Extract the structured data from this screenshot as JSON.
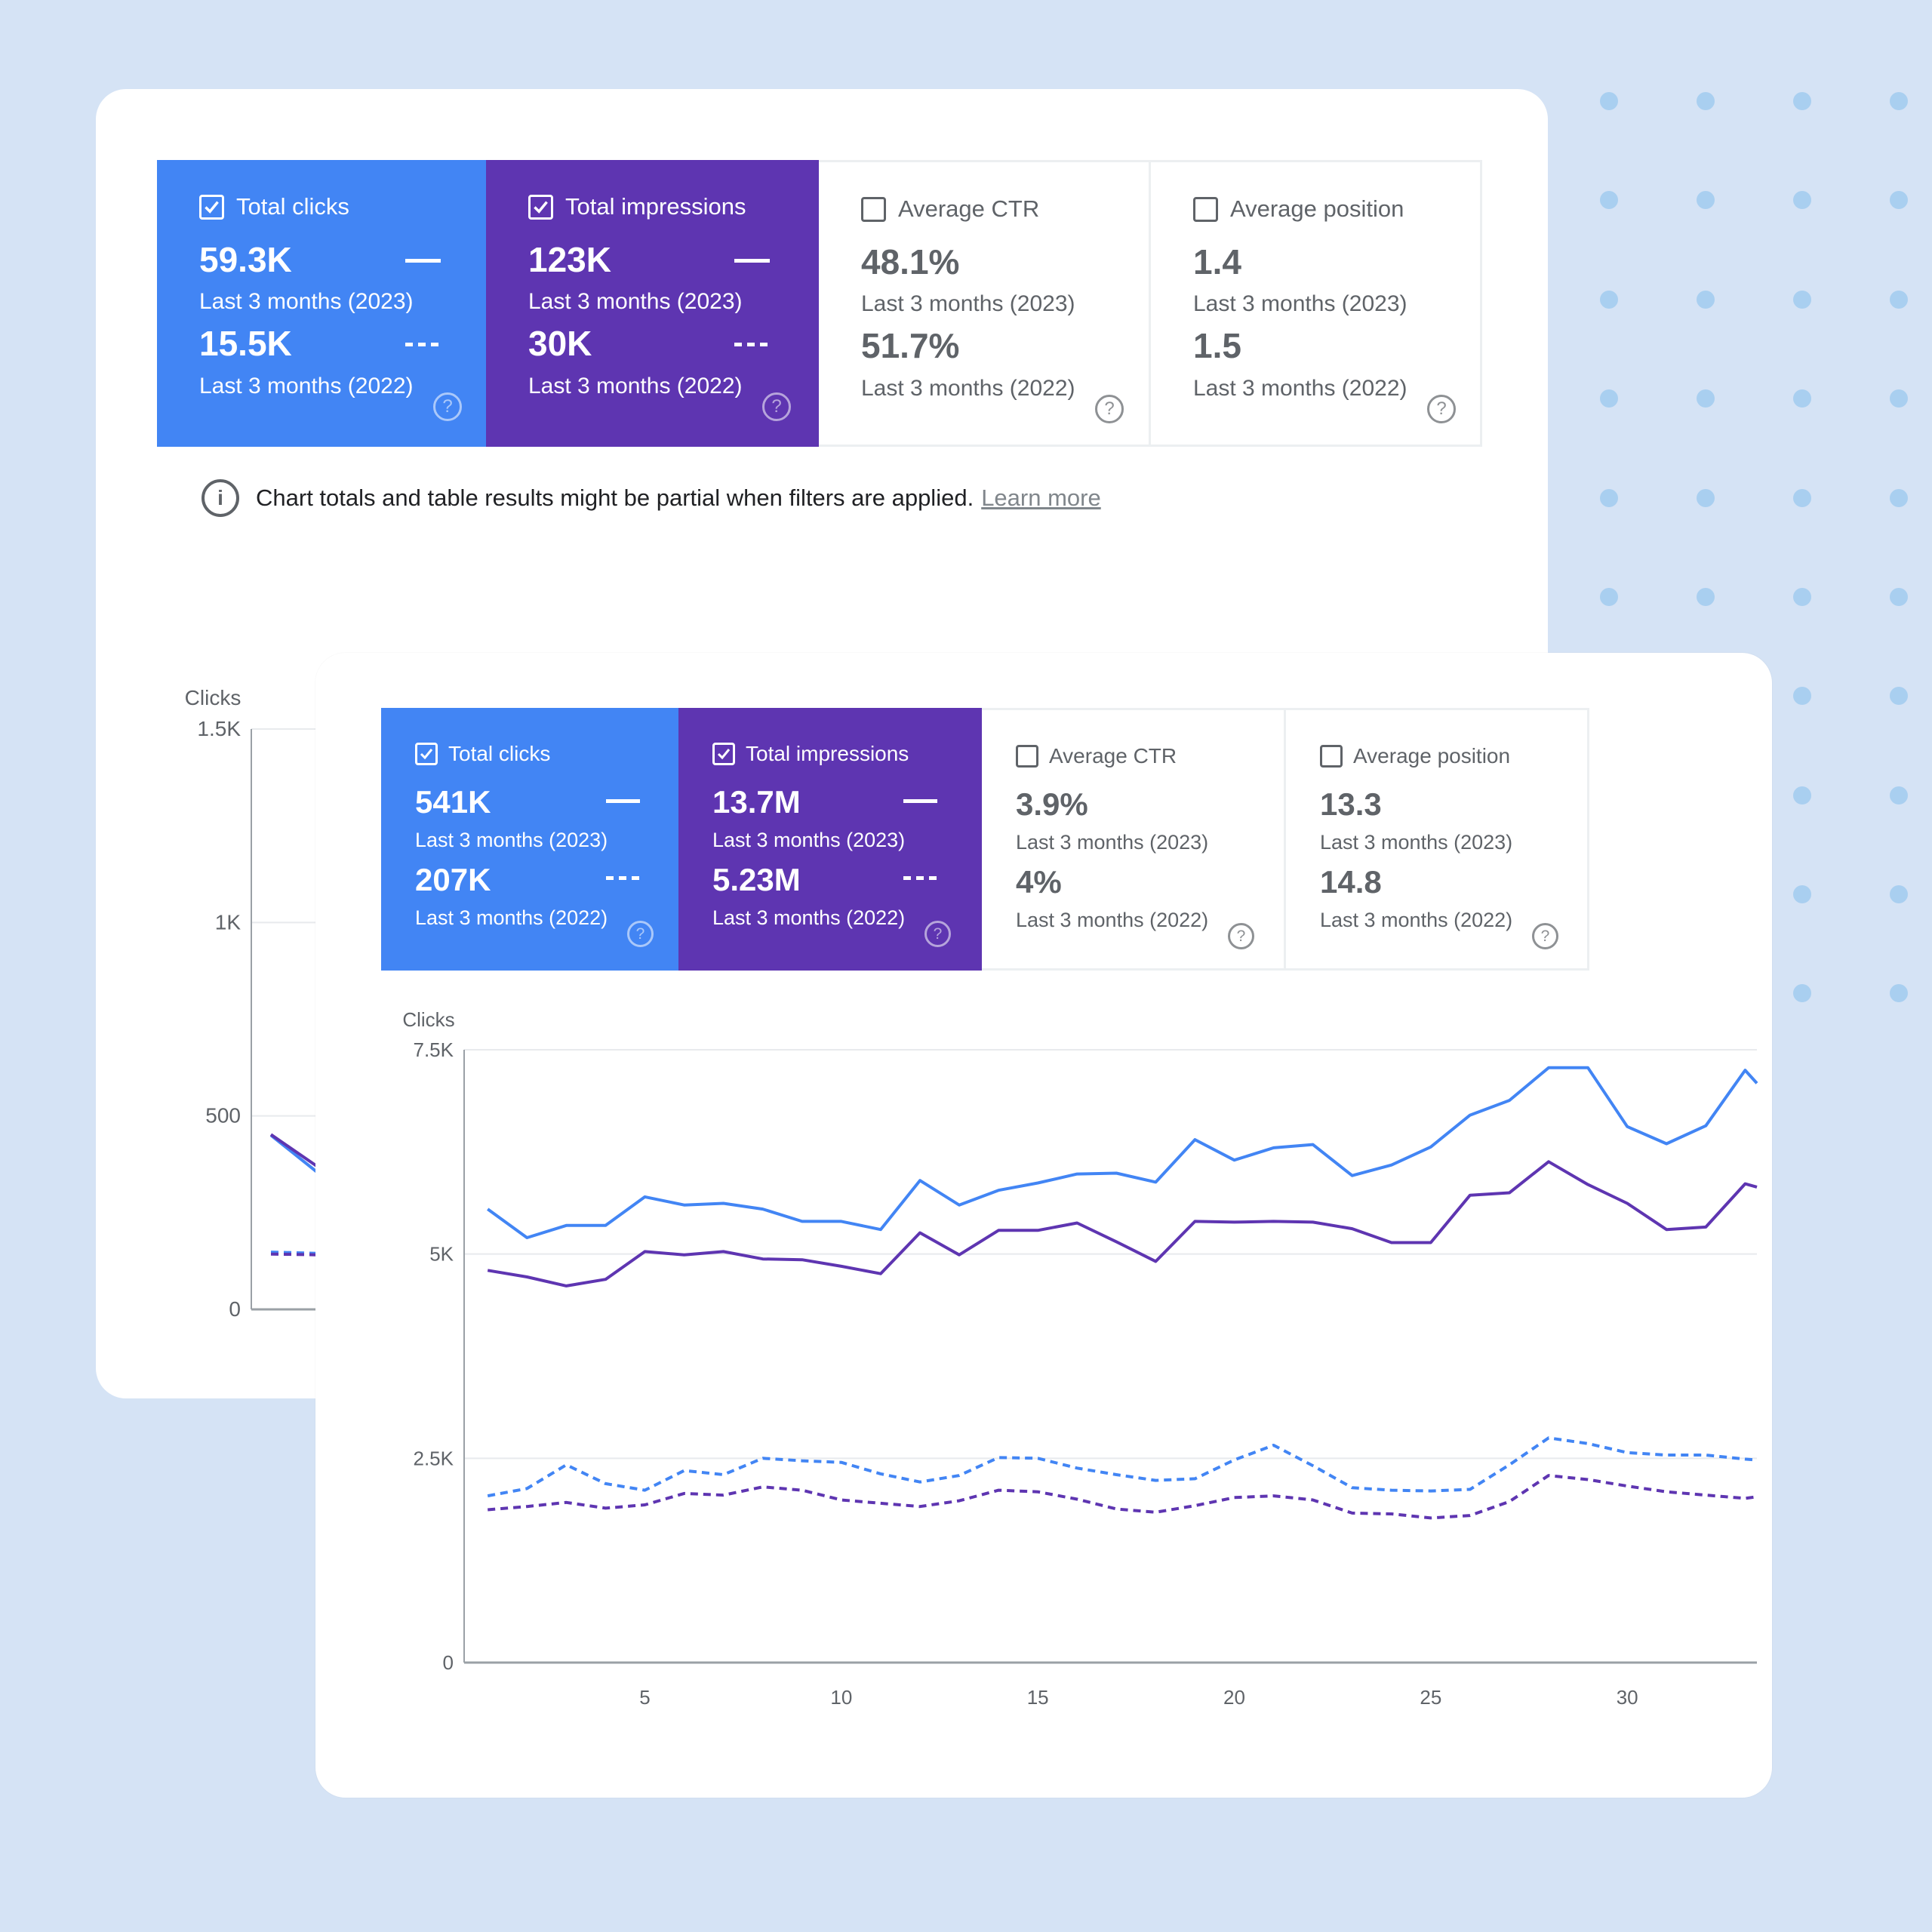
{
  "colors": {
    "background": "#d5e3f5",
    "dots": "#a9cff0",
    "clicks_blue": "#4285f4",
    "impressions_purple": "#5e35b1",
    "inactive_text": "#5f6368"
  },
  "back_panel": {
    "metrics": [
      {
        "label": "Total clicks",
        "checked": true,
        "value_current": "59.3K",
        "period_current": "Last 3 months (2023)",
        "value_previous": "15.5K",
        "period_previous": "Last 3 months (2022)"
      },
      {
        "label": "Total impressions",
        "checked": true,
        "value_current": "123K",
        "period_current": "Last 3 months (2023)",
        "value_previous": "30K",
        "period_previous": "Last 3 months (2022)"
      },
      {
        "label": "Average CTR",
        "checked": false,
        "value_current": "48.1%",
        "period_current": "Last 3 months (2023)",
        "value_previous": "51.7%",
        "period_previous": "Last 3 months (2022)"
      },
      {
        "label": "Average position",
        "checked": false,
        "value_current": "1.4",
        "period_current": "Last 3 months (2023)",
        "value_previous": "1.5",
        "period_previous": "Last 3 months (2022)"
      }
    ],
    "notice": {
      "text": "Chart totals and table results might be partial when filters are applied.",
      "link": "Learn more"
    },
    "help_glyph": "?",
    "info_glyph": "i"
  },
  "chart_data": [
    {
      "type": "line",
      "ylabel": "Clicks",
      "ylim": [
        0,
        1500
      ],
      "yticks": [
        "1.5K",
        "1K",
        "500",
        "0"
      ],
      "ytick_values": [
        1500,
        1000,
        500,
        0
      ],
      "grid": true,
      "series": [
        {
          "style": "solid",
          "color": "#4285f4",
          "x": [
            1,
            2
          ],
          "values": [
            450,
            355
          ]
        },
        {
          "style": "solid",
          "color": "#5e35b1",
          "x": [
            1,
            2
          ],
          "values": [
            452,
            370
          ]
        },
        {
          "style": "dashed",
          "color": "#4285f4",
          "x": [
            1,
            2
          ],
          "values": [
            148,
            145
          ]
        },
        {
          "style": "dashed",
          "color": "#5e35b1",
          "x": [
            1,
            2
          ],
          "values": [
            143,
            141
          ]
        }
      ]
    },
    {
      "type": "line",
      "ylabel": "Clicks",
      "ylim": [
        0,
        7500
      ],
      "yticks": [
        "7.5K",
        "5K",
        "2.5K",
        "0"
      ],
      "ytick_values": [
        7500,
        5000,
        2500,
        0
      ],
      "xticks": [
        "5",
        "10",
        "15",
        "20",
        "25",
        "30"
      ],
      "xtick_values": [
        5,
        10,
        15,
        20,
        25,
        30
      ],
      "xlim": [
        0.4,
        33.3
      ],
      "grid": true,
      "series": [
        {
          "style": "solid",
          "color": "#4285f4",
          "x": [
            1,
            2,
            3,
            4,
            5,
            6,
            7,
            8,
            9,
            10,
            11,
            12,
            13,
            14,
            15,
            16,
            17,
            18,
            19,
            20,
            21,
            22,
            23,
            24,
            25,
            26,
            27,
            28,
            29,
            30,
            31,
            32,
            33,
            33.3
          ],
          "values": [
            5550,
            5200,
            5350,
            5350,
            5700,
            5600,
            5620,
            5550,
            5400,
            5400,
            5300,
            5900,
            5600,
            5780,
            5870,
            5980,
            5990,
            5880,
            6400,
            6150,
            6300,
            6340,
            5960,
            6090,
            6310,
            6700,
            6880,
            7280,
            7280,
            6560,
            6350,
            6570,
            7250,
            7090
          ]
        },
        {
          "style": "solid",
          "color": "#5e35b1",
          "x": [
            1,
            2,
            3,
            4,
            5,
            6,
            7,
            8,
            9,
            10,
            11,
            12,
            13,
            14,
            15,
            16,
            17,
            18,
            19,
            20,
            21,
            22,
            23,
            24,
            25,
            26,
            27,
            28,
            29,
            30,
            31,
            32,
            33,
            33.3
          ],
          "values": [
            4800,
            4720,
            4610,
            4690,
            5030,
            4990,
            5030,
            4940,
            4930,
            4850,
            4760,
            5260,
            4990,
            5290,
            5290,
            5380,
            5150,
            4910,
            5400,
            5390,
            5400,
            5390,
            5310,
            5140,
            5140,
            5720,
            5750,
            6130,
            5850,
            5620,
            5300,
            5330,
            5860,
            5820
          ]
        },
        {
          "style": "dashed",
          "color": "#4285f4",
          "x": [
            1,
            2,
            3,
            4,
            5,
            6,
            7,
            8,
            9,
            10,
            11,
            12,
            13,
            14,
            15,
            16,
            17,
            18,
            19,
            20,
            21,
            22,
            23,
            24,
            25,
            26,
            27,
            28,
            29,
            30,
            31,
            32,
            33,
            33.3
          ],
          "values": [
            2040,
            2130,
            2420,
            2190,
            2110,
            2350,
            2300,
            2500,
            2470,
            2450,
            2310,
            2210,
            2290,
            2510,
            2500,
            2380,
            2300,
            2230,
            2250,
            2480,
            2660,
            2410,
            2140,
            2110,
            2100,
            2120,
            2420,
            2750,
            2680,
            2570,
            2540,
            2540,
            2490,
            2480
          ]
        },
        {
          "style": "dashed",
          "color": "#5e35b1",
          "x": [
            1,
            2,
            3,
            4,
            5,
            6,
            7,
            8,
            9,
            10,
            11,
            12,
            13,
            14,
            15,
            16,
            17,
            18,
            19,
            20,
            21,
            22,
            23,
            24,
            25,
            26,
            27,
            28,
            29,
            30,
            31,
            32,
            33,
            33.3
          ],
          "values": [
            1870,
            1910,
            1960,
            1890,
            1930,
            2070,
            2050,
            2150,
            2110,
            1990,
            1950,
            1910,
            1980,
            2110,
            2090,
            2000,
            1880,
            1840,
            1920,
            2020,
            2040,
            1990,
            1830,
            1820,
            1770,
            1800,
            1970,
            2290,
            2240,
            2160,
            2090,
            2050,
            2010,
            2030
          ]
        }
      ]
    }
  ],
  "front_panel": {
    "metrics": [
      {
        "label": "Total clicks",
        "checked": true,
        "value_current": "541K",
        "period_current": "Last 3 months (2023)",
        "value_previous": "207K",
        "period_previous": "Last 3 months (2022)"
      },
      {
        "label": "Total impressions",
        "checked": true,
        "value_current": "13.7M",
        "period_current": "Last 3 months (2023)",
        "value_previous": "5.23M",
        "period_previous": "Last 3 months (2022)"
      },
      {
        "label": "Average CTR",
        "checked": false,
        "value_current": "3.9%",
        "period_current": "Last 3 months (2023)",
        "value_previous": "4%",
        "period_previous": "Last 3 months (2022)"
      },
      {
        "label": "Average position",
        "checked": false,
        "value_current": "13.3",
        "period_current": "Last 3 months (2023)",
        "value_previous": "14.8",
        "period_previous": "Last 3 months (2022)"
      }
    ],
    "help_glyph": "?"
  }
}
